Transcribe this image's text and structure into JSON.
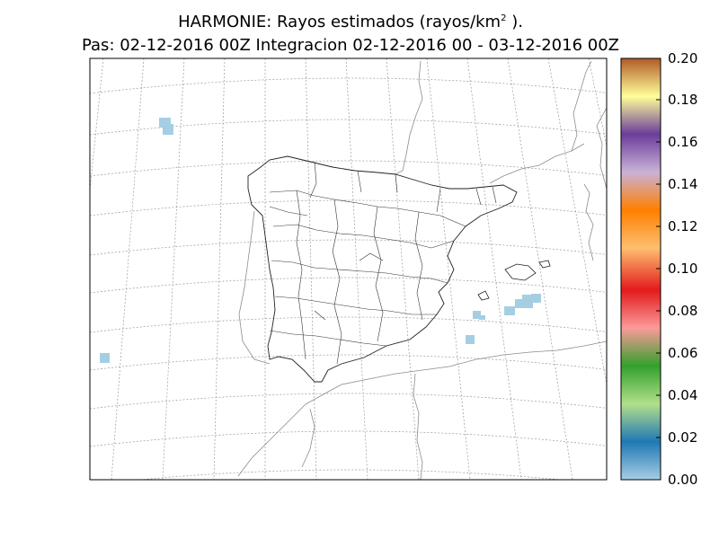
{
  "title": {
    "line1_prefix": "HARMONIE: Rayos estimados  (rayos/km",
    "line1_sup": "2",
    "line1_suffix": " ).",
    "line2": "Pas: 02-12-2016 00Z Integracion 02-12-2016 00 - 03-12-2016 00Z"
  },
  "colorbar": {
    "ticks": [
      "0.00",
      "0.02",
      "0.04",
      "0.06",
      "0.08",
      "0.10",
      "0.12",
      "0.14",
      "0.16",
      "0.18",
      "0.20"
    ],
    "colors": [
      "#a6cee3",
      "#1f78b4",
      "#b2df8a",
      "#33a02c",
      "#fb9a99",
      "#e31a1c",
      "#fdbf6f",
      "#ff7f00",
      "#cab2d6",
      "#6a3d9a",
      "#ffff99",
      "#b15928"
    ]
  },
  "colors": {
    "lightning_cells": "#a6cee3",
    "grid": "#999999"
  }
}
